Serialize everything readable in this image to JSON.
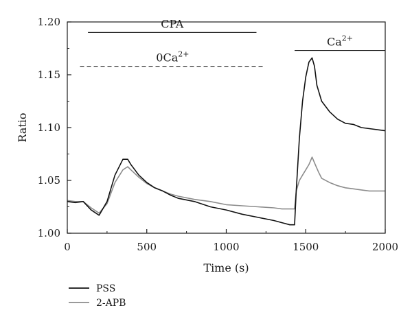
{
  "chart_data": {
    "type": "line",
    "title": "",
    "xlabel": "Time (s)",
    "ylabel": "Ratio",
    "xlim": [
      0,
      2000
    ],
    "ylim": [
      1.0,
      1.2
    ],
    "xticks": [
      0,
      500,
      1000,
      1500,
      2000
    ],
    "yticks": [
      1.0,
      1.05,
      1.1,
      1.15,
      1.2
    ],
    "ytick_labels": [
      "1.00",
      "1.05",
      "1.10",
      "1.15",
      "1.20"
    ],
    "grid": false,
    "legend_position": "bottom-left",
    "annotations": [
      {
        "name": "cpa",
        "label": "CPA",
        "x_start": 130,
        "x_end": 1190,
        "y": 1.19,
        "style": "solid",
        "label_above": true
      },
      {
        "name": "zero-ca",
        "label_base": "0Ca",
        "label_sup": "2+",
        "x_start": 80,
        "x_end": 1245,
        "y": 1.158,
        "style": "dashed",
        "label_above": true
      },
      {
        "name": "ca",
        "label_base": "Ca",
        "label_sup": "2+",
        "x_start": 1430,
        "x_end": 2000,
        "y": 1.173,
        "style": "solid",
        "label_above": true
      }
    ],
    "series": [
      {
        "name": "PSS",
        "color": "#111111",
        "x": [
          0,
          50,
          100,
          150,
          200,
          250,
          300,
          350,
          380,
          400,
          450,
          500,
          550,
          600,
          650,
          700,
          800,
          900,
          1000,
          1100,
          1200,
          1300,
          1350,
          1400,
          1430,
          1440,
          1460,
          1480,
          1500,
          1520,
          1540,
          1555,
          1570,
          1600,
          1650,
          1700,
          1750,
          1800,
          1850,
          1900,
          1950,
          2000
        ],
        "y": [
          1.03,
          1.029,
          1.03,
          1.022,
          1.017,
          1.03,
          1.055,
          1.07,
          1.07,
          1.065,
          1.055,
          1.048,
          1.043,
          1.04,
          1.036,
          1.033,
          1.03,
          1.025,
          1.022,
          1.018,
          1.015,
          1.012,
          1.01,
          1.008,
          1.008,
          1.04,
          1.09,
          1.125,
          1.148,
          1.162,
          1.166,
          1.158,
          1.14,
          1.125,
          1.115,
          1.108,
          1.104,
          1.103,
          1.1,
          1.099,
          1.098,
          1.097
        ]
      },
      {
        "name": "2-APB",
        "color": "#8c8c8c",
        "x": [
          0,
          50,
          100,
          150,
          200,
          250,
          300,
          350,
          380,
          400,
          450,
          500,
          550,
          600,
          650,
          700,
          800,
          900,
          1000,
          1100,
          1200,
          1300,
          1350,
          1400,
          1430,
          1440,
          1460,
          1480,
          1500,
          1520,
          1540,
          1560,
          1580,
          1600,
          1650,
          1700,
          1750,
          1800,
          1850,
          1900,
          1950,
          2000
        ],
        "y": [
          1.031,
          1.03,
          1.03,
          1.024,
          1.019,
          1.028,
          1.048,
          1.06,
          1.063,
          1.06,
          1.053,
          1.047,
          1.043,
          1.04,
          1.037,
          1.035,
          1.032,
          1.03,
          1.027,
          1.026,
          1.025,
          1.024,
          1.023,
          1.023,
          1.023,
          1.04,
          1.05,
          1.055,
          1.06,
          1.065,
          1.072,
          1.065,
          1.058,
          1.052,
          1.048,
          1.045,
          1.043,
          1.042,
          1.041,
          1.04,
          1.04,
          1.04
        ]
      }
    ]
  }
}
